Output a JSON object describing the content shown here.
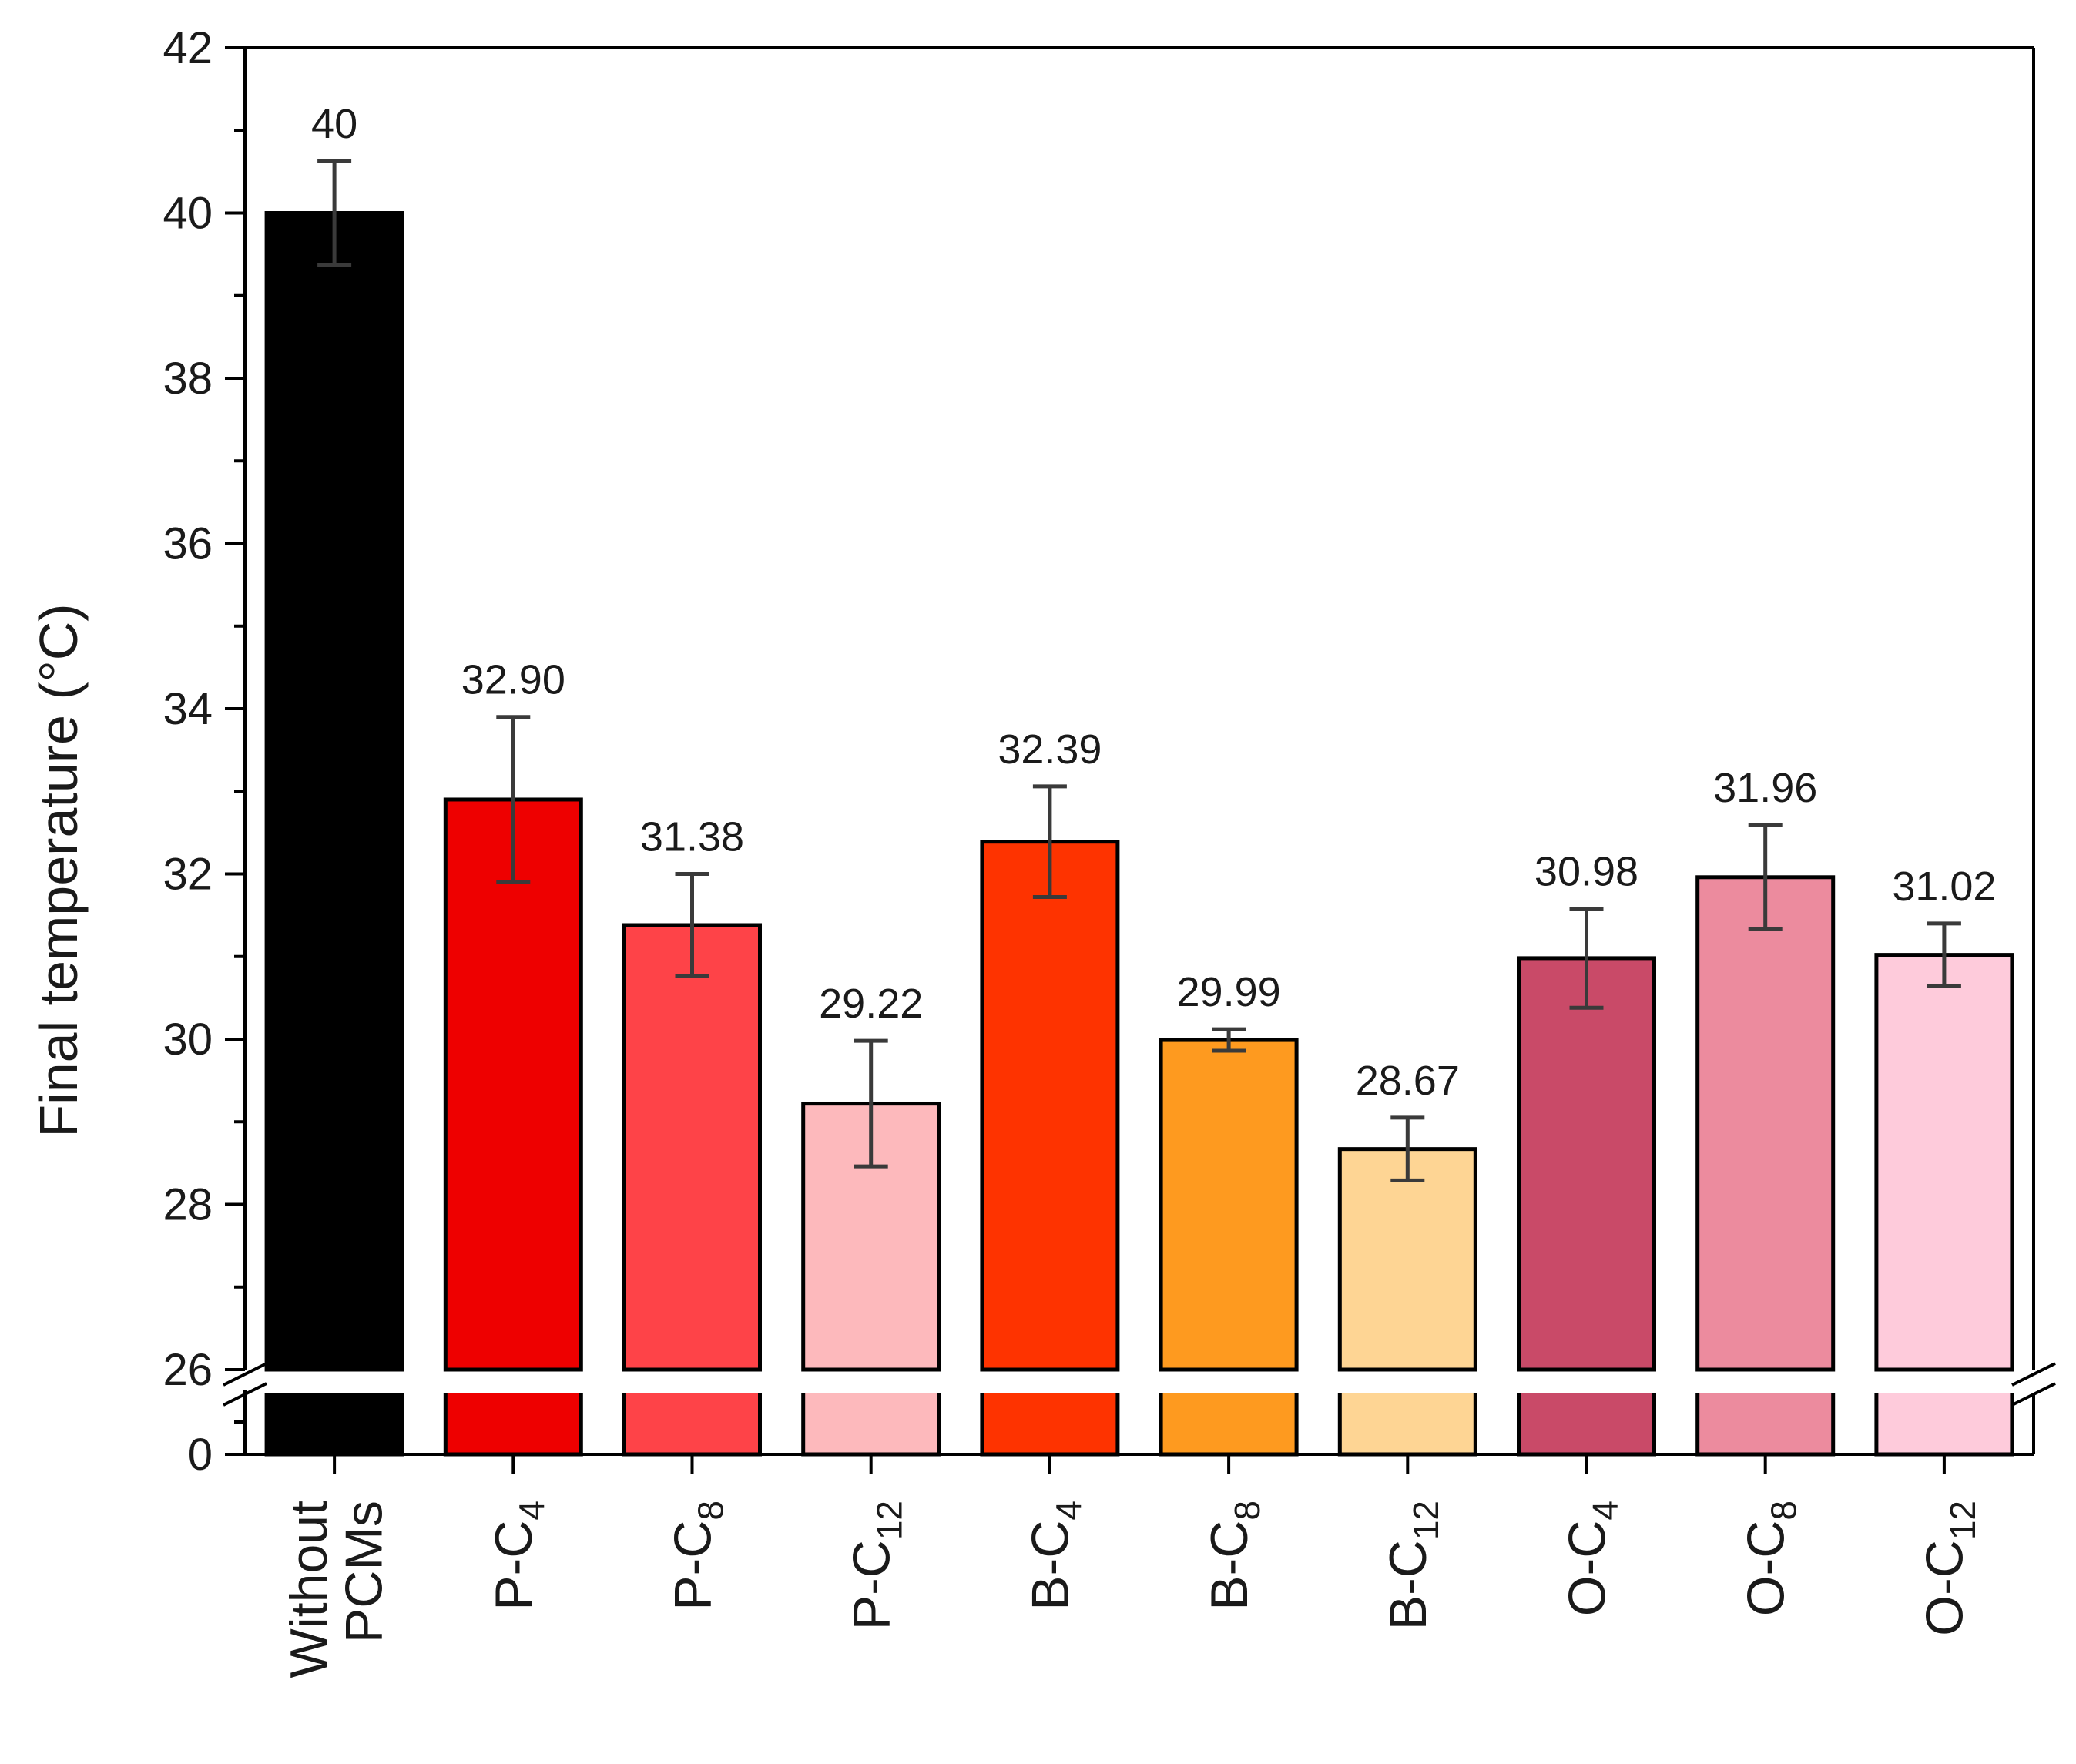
{
  "chart_data": {
    "type": "bar",
    "title": "",
    "xlabel": "",
    "ylabel": "Final temperature (°C)",
    "ylim_upper": [
      26,
      42
    ],
    "ylim_lower": [
      0,
      0
    ],
    "axis_break": true,
    "yticks_upper": [
      "26",
      "28",
      "30",
      "32",
      "34",
      "36",
      "38",
      "40",
      "42"
    ],
    "yticks_lower": [
      "0"
    ],
    "bars": [
      {
        "category": "Without PCMs",
        "line1": "Without",
        "line2": "PCMs",
        "base": "",
        "sub": "",
        "value": 40,
        "error": 0.63,
        "label": "40",
        "color": "#000000"
      },
      {
        "category": "P-C4",
        "line1": "",
        "line2": "",
        "base": "P-C",
        "sub": "4",
        "value": 32.9,
        "error": 1.0,
        "label": "32.90",
        "color": "#ee0000"
      },
      {
        "category": "P-C8",
        "line1": "",
        "line2": "",
        "base": "P-C",
        "sub": "8",
        "value": 31.38,
        "error": 0.62,
        "label": "31.38",
        "color": "#fe4348"
      },
      {
        "category": "P-C12",
        "line1": "",
        "line2": "",
        "base": "P-C",
        "sub": "12",
        "value": 29.22,
        "error": 0.76,
        "label": "29.22",
        "color": "#fdb9bc"
      },
      {
        "category": "B-C4",
        "line1": "",
        "line2": "",
        "base": "B-C",
        "sub": "4",
        "value": 32.39,
        "error": 0.67,
        "label": "32.39",
        "color": "#fe3300"
      },
      {
        "category": "B-C8",
        "line1": "",
        "line2": "",
        "base": "B-C",
        "sub": "8",
        "value": 29.99,
        "error": 0.13,
        "label": "29.99",
        "color": "#fe9a1f"
      },
      {
        "category": "B-C12",
        "line1": "",
        "line2": "",
        "base": "B-C",
        "sub": "12",
        "value": 28.67,
        "error": 0.38,
        "label": "28.67",
        "color": "#fed594"
      },
      {
        "category": "O-C4",
        "line1": "",
        "line2": "",
        "base": "O-C",
        "sub": "4",
        "value": 30.98,
        "error": 0.6,
        "label": "30.98",
        "color": "#c94a68"
      },
      {
        "category": "O-C8",
        "line1": "",
        "line2": "",
        "base": "O-C",
        "sub": "8",
        "value": 31.96,
        "error": 0.63,
        "label": "31.96",
        "color": "#ec8b9e"
      },
      {
        "category": "O-C12",
        "line1": "",
        "line2": "",
        "base": "O-C",
        "sub": "12",
        "value": 31.02,
        "error": 0.38,
        "label": "31.02",
        "color": "#fecbdb"
      }
    ],
    "colors": {
      "axis": "#000000",
      "errorbar": "#3a3a3a",
      "background": "#ffffff"
    }
  }
}
